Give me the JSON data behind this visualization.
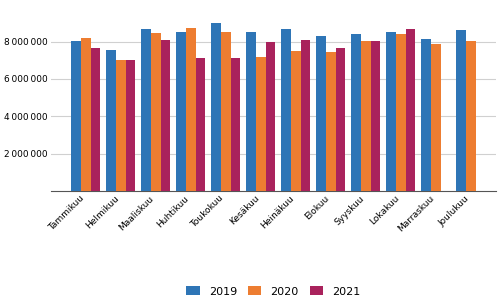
{
  "months": [
    "Tammikuu",
    "Helmikuu",
    "Maaliskuu",
    "Huhtikuu",
    "Toukokuu",
    "Kesäkuu",
    "Heinäkuu",
    "Elokuu",
    "Syyskuu",
    "Lokakuu",
    "Marraskuu",
    "Joulukuu"
  ],
  "data_2019": [
    8050000,
    7550000,
    8650000,
    8500000,
    9000000,
    8500000,
    8650000,
    8300000,
    8400000,
    8500000,
    8150000,
    8600000
  ],
  "data_2020": [
    8200000,
    7000000,
    8450000,
    8700000,
    8500000,
    7150000,
    7500000,
    7450000,
    8050000,
    8400000,
    7850000,
    8050000
  ],
  "data_2021": [
    7650000,
    7000000,
    8100000,
    7100000,
    7100000,
    7950000,
    8100000,
    7650000,
    8050000,
    8650000,
    null,
    null
  ],
  "color_2019": "#2E75B6",
  "color_2020": "#ED7D31",
  "color_2021": "#A9225C",
  "legend_labels": [
    "2019",
    "2020",
    "2021"
  ],
  "ylim": [
    0,
    10000000
  ],
  "yticks": [
    2000000,
    4000000,
    6000000,
    8000000
  ],
  "background_color": "#ffffff",
  "grid_color": "#d0d0d0"
}
